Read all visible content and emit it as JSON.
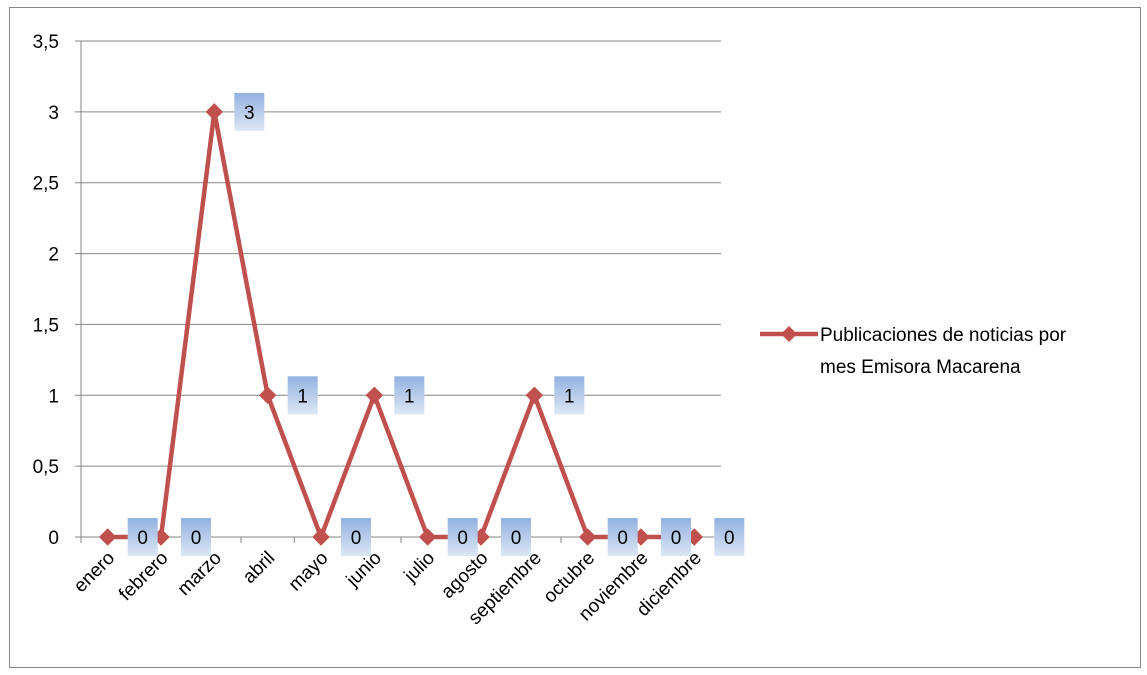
{
  "chart_data": {
    "type": "line",
    "title": "",
    "xlabel": "",
    "ylabel": "",
    "categories": [
      "enero",
      "febrero",
      "marzo",
      "abril",
      "mayo",
      "junio",
      "julio",
      "agosto",
      "septiembre",
      "octubre",
      "noviembre",
      "diciembre"
    ],
    "series": [
      {
        "name": "Publicaciones de noticias por mes Emisora Macarena",
        "values": [
          0,
          0,
          3,
          1,
          0,
          1,
          0,
          0,
          1,
          0,
          0,
          0
        ],
        "data_labels": [
          "0",
          "0",
          "3",
          "1",
          "0",
          "1",
          "0",
          "0",
          "1",
          "0",
          "0",
          "0"
        ],
        "color": "#c0504d",
        "marker": "diamond"
      }
    ],
    "ylim": [
      0,
      3.5
    ],
    "y_ticks": [
      "0",
      "0,5",
      "1",
      "1,5",
      "2",
      "2,5",
      "3",
      "3,5"
    ],
    "grid": true,
    "legend_position": "right",
    "colors": {
      "gridline": "#868686",
      "frame": "#868686",
      "label_box": "#a7bfe3"
    }
  }
}
